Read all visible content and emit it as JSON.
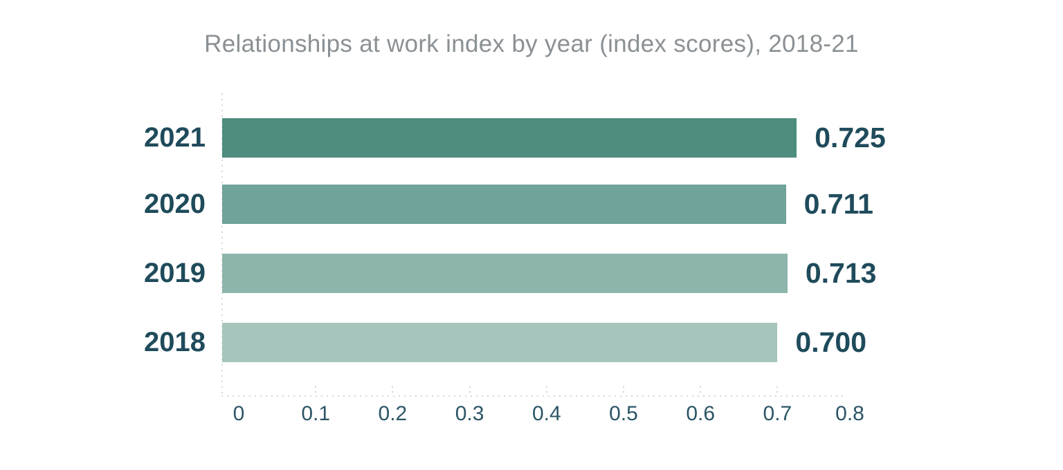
{
  "chart_data": {
    "type": "bar",
    "orientation": "horizontal",
    "title": "Relationships at work index by year (index scores), 2018-21",
    "categories": [
      "2021",
      "2020",
      "2019",
      "2018"
    ],
    "values": [
      0.725,
      0.711,
      0.713,
      0.7
    ],
    "value_labels": [
      "0.725",
      "0.711",
      "0.713",
      "0.700"
    ],
    "bar_colors": [
      "#4e8c7e",
      "#70a39a",
      "#8db5ac",
      "#a6c5bc"
    ],
    "xlabel": "",
    "ylabel": "",
    "xlim": [
      0,
      0.8
    ],
    "x_ticks": [
      0,
      0.1,
      0.2,
      0.3,
      0.4,
      0.5,
      0.6,
      0.7,
      0.8
    ],
    "x_tick_labels": [
      "0",
      "0.1",
      "0.2",
      "0.3",
      "0.4",
      "0.5",
      "0.6",
      "0.7",
      "0.8"
    ],
    "grid": "dotted zero-gridline and dotted x-axis with tick marks",
    "legend_position": "none",
    "colors": {
      "title_text": "#8a9094",
      "label_text": "#1f4b5b",
      "axis_text": "#2b5565",
      "grid_dots": "#d2d8da",
      "background": "#ffffff"
    }
  }
}
